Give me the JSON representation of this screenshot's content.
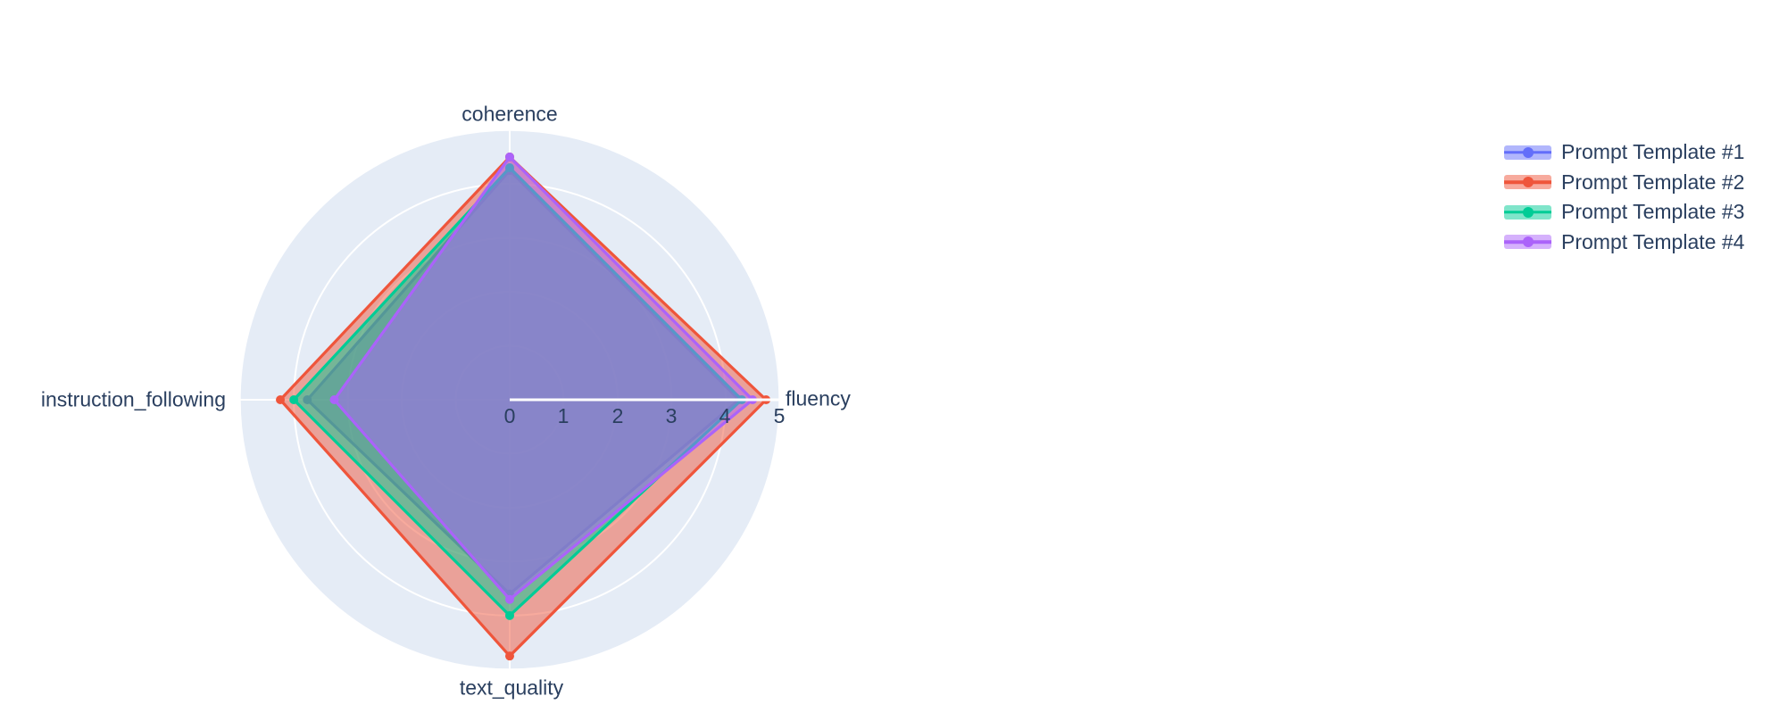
{
  "chart_data": {
    "type": "radar",
    "categories": [
      "coherence",
      "fluency",
      "text_quality",
      "instruction_following"
    ],
    "series": [
      {
        "name": "Prompt Template #1",
        "color": "#636EFA",
        "values": [
          4.25,
          4.25,
          3.6,
          3.75
        ]
      },
      {
        "name": "Prompt Template #2",
        "color": "#EF553B",
        "values": [
          4.5,
          4.75,
          4.75,
          4.25
        ]
      },
      {
        "name": "Prompt Template #3",
        "color": "#00CC96",
        "values": [
          4.3,
          4.3,
          4.0,
          4.0
        ]
      },
      {
        "name": "Prompt Template #4",
        "color": "#AB63FA",
        "values": [
          4.5,
          4.5,
          3.7,
          3.25
        ]
      }
    ],
    "radial_axis": {
      "range": [
        0,
        5
      ],
      "tick_labels": [
        "0",
        "1",
        "2",
        "3",
        "4",
        "5"
      ]
    },
    "legend_position": "top-right",
    "style": {
      "plot_bgcolor": "#E5ECF6",
      "grid_color": "#ffffff",
      "label_color": "#2a3f5f",
      "fill_opacity": 0.5
    }
  }
}
